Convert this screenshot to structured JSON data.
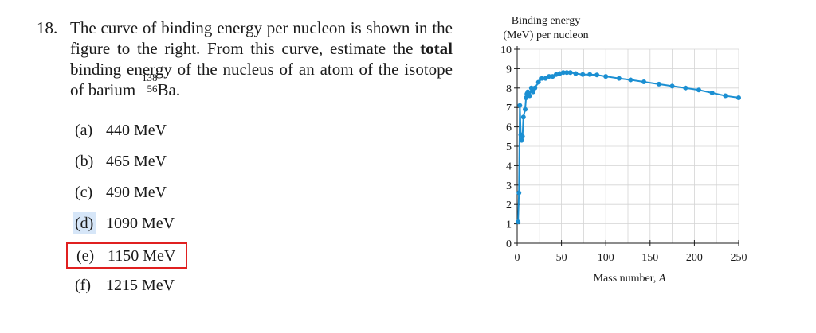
{
  "question": {
    "number": "18.",
    "text_before_bold": "The curve of binding energy per nucleon is shown in the figure to the right. From this curve, estimate the ",
    "bold_word": "total",
    "text_after_bold": " binding energy of the nucleus of an atom of the isotope of barium ",
    "isotope_mass": "138",
    "isotope_z": "56",
    "isotope_symbol": "Ba",
    "text_end": "."
  },
  "choices": [
    {
      "letter": "(a)",
      "value": "440 MeV"
    },
    {
      "letter": "(b)",
      "value": "465 MeV"
    },
    {
      "letter": "(c)",
      "value": "490 MeV"
    },
    {
      "letter": "(d)",
      "value": "1090 MeV",
      "highlighted": true
    },
    {
      "letter": "(e)",
      "value": "1150 MeV",
      "boxed": true
    },
    {
      "letter": "(f)",
      "value": "1215 MeV"
    }
  ],
  "colors": {
    "curve": "#1b8fd2",
    "box": "#e02020",
    "highlight": "#d6e6f8"
  },
  "chart_data": {
    "type": "line",
    "ylabel_line1": "Binding energy",
    "ylabel_line2": "(MeV) per nucleon",
    "xlabel": "Mass number, ",
    "xlabel_var": "A",
    "xlim": [
      0,
      250
    ],
    "ylim": [
      0,
      10
    ],
    "x_ticks": [
      0,
      50,
      100,
      150,
      200,
      250
    ],
    "y_ticks": [
      0,
      1,
      2,
      3,
      4,
      5,
      6,
      7,
      8,
      9,
      10
    ],
    "grid": true,
    "points": [
      {
        "x": 1,
        "y": 1.1
      },
      {
        "x": 2,
        "y": 2.6
      },
      {
        "x": 3,
        "y": 7.1
      },
      {
        "x": 4,
        "y": 5.6
      },
      {
        "x": 5,
        "y": 5.3
      },
      {
        "x": 6,
        "y": 5.5
      },
      {
        "x": 7,
        "y": 6.5
      },
      {
        "x": 9,
        "y": 6.9
      },
      {
        "x": 10,
        "y": 7.5
      },
      {
        "x": 11,
        "y": 7.7
      },
      {
        "x": 12,
        "y": 7.8
      },
      {
        "x": 14,
        "y": 7.6
      },
      {
        "x": 16,
        "y": 8.0
      },
      {
        "x": 18,
        "y": 7.8
      },
      {
        "x": 20,
        "y": 8.0
      },
      {
        "x": 24,
        "y": 8.3
      },
      {
        "x": 28,
        "y": 8.5
      },
      {
        "x": 32,
        "y": 8.5
      },
      {
        "x": 36,
        "y": 8.6
      },
      {
        "x": 40,
        "y": 8.6
      },
      {
        "x": 44,
        "y": 8.7
      },
      {
        "x": 48,
        "y": 8.75
      },
      {
        "x": 52,
        "y": 8.8
      },
      {
        "x": 56,
        "y": 8.8
      },
      {
        "x": 60,
        "y": 8.8
      },
      {
        "x": 66,
        "y": 8.75
      },
      {
        "x": 74,
        "y": 8.7
      },
      {
        "x": 82,
        "y": 8.7
      },
      {
        "x": 90,
        "y": 8.68
      },
      {
        "x": 100,
        "y": 8.6
      },
      {
        "x": 115,
        "y": 8.5
      },
      {
        "x": 128,
        "y": 8.42
      },
      {
        "x": 143,
        "y": 8.32
      },
      {
        "x": 160,
        "y": 8.2
      },
      {
        "x": 175,
        "y": 8.1
      },
      {
        "x": 190,
        "y": 8.0
      },
      {
        "x": 205,
        "y": 7.9
      },
      {
        "x": 220,
        "y": 7.75
      },
      {
        "x": 235,
        "y": 7.6
      },
      {
        "x": 250,
        "y": 7.5
      }
    ]
  }
}
